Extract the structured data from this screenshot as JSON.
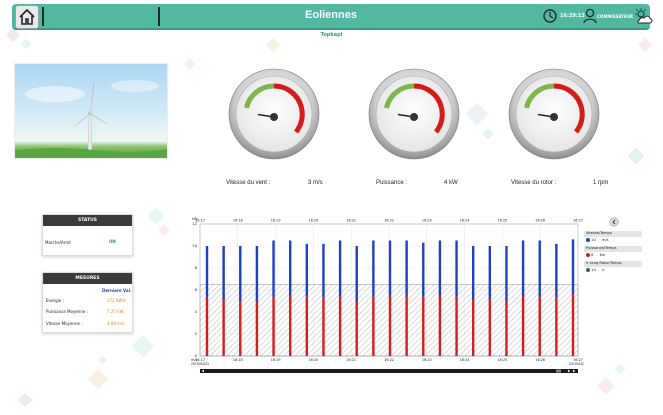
{
  "header": {
    "title": "Eoliennes",
    "time": "16:29:13",
    "user": "COMMISSATEUR",
    "subtitle": "Topkapi"
  },
  "gauges": [
    {
      "label": "Vitesse du vent :",
      "value": "3",
      "unit": "m/s"
    },
    {
      "label": "Puissance :",
      "value": "4",
      "unit": "kW"
    },
    {
      "label": "Vitesse du rotor :",
      "value": "1",
      "unit": "rpm"
    }
  ],
  "status": {
    "title": "STATUS",
    "label": "Marche/Arret",
    "value": "ON"
  },
  "mesures": {
    "title": "MESURES",
    "column_header": "Derniere Val.",
    "rows": [
      {
        "label": "Energie :",
        "value": "172 KWH"
      },
      {
        "label": "Puissance Moyenne :",
        "value": "7.27 kW"
      },
      {
        "label": "Vitesse Moyenne :",
        "value": "4.89 m/s"
      }
    ]
  },
  "chart_data": {
    "type": "bar",
    "x_top": [
      "16:17",
      "16:18",
      "16:19",
      "16:20",
      "16:21",
      "16:22",
      "16:23",
      "16:24",
      "16:25",
      "16:26",
      "16:27"
    ],
    "x_bottom": [
      "16:17",
      "16:18",
      "16:19",
      "16:20",
      "16:21",
      "16:22",
      "16:23",
      "16:24",
      "16:25",
      "16:26",
      "16:27"
    ],
    "x_bottom_dates": [
      "2019/04/22",
      "2019/04/22"
    ],
    "y_ticks": [
      "12",
      "10",
      "8",
      "6",
      "4",
      "2",
      "0"
    ],
    "y_unit_top": "kW",
    "y_unit_bottom": "m/s",
    "ylim": [
      0,
      12
    ],
    "band_level": 6.5,
    "series": [
      {
        "name": "Vitesse/Temps",
        "unit": "m/s",
        "color": "#1f3fc4",
        "values": [
          10,
          10,
          10,
          10,
          10.5,
          10.5,
          10.2,
          10.2,
          10.5,
          10,
          10.5,
          10.5,
          10.5,
          10.3,
          10.5,
          10.5,
          10,
          10,
          10,
          10.5,
          10.5,
          10.2,
          10.6
        ]
      },
      {
        "name": "Puissance/Temps",
        "unit": "Kw",
        "color": "#d11f1f",
        "values": [
          5.3,
          5.1,
          5,
          5,
          5.4,
          5.5,
          5.4,
          5.3,
          5.4,
          5,
          5.4,
          5.5,
          5.5,
          5.4,
          5.5,
          5.4,
          5.1,
          5.1,
          5,
          5.5,
          5.4,
          5.3,
          5.6
        ]
      },
      {
        "name": "V ensg Rotor/Temps",
        "unit": "U",
        "color": "#555555",
        "values": []
      }
    ],
    "legend_values": [
      "10",
      "8",
      "10"
    ]
  }
}
